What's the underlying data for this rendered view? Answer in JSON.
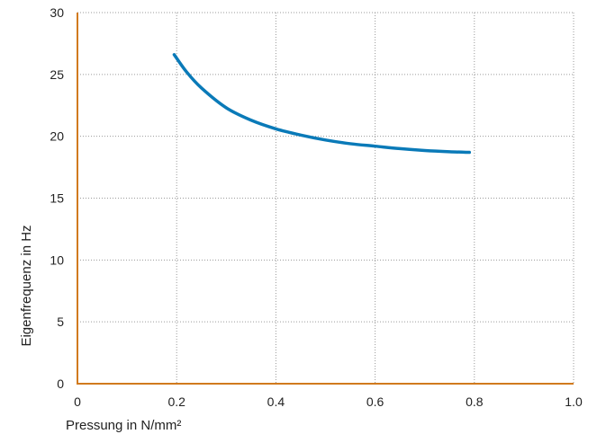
{
  "chart_data": {
    "type": "line",
    "title": "",
    "xlabel": "Pressung in N/mm²",
    "ylabel": "Eigenfrequenz in Hz",
    "xlim": [
      0,
      1.0
    ],
    "ylim": [
      0,
      30
    ],
    "x_ticks": [
      "0",
      "0.2",
      "0.4",
      "0.6",
      "0.8",
      "1.0"
    ],
    "y_ticks": [
      "0",
      "5",
      "10",
      "15",
      "20",
      "25",
      "30"
    ],
    "grid": true,
    "legend": "none",
    "series": [
      {
        "color": "#0a7ab8",
        "x": [
          0.195,
          0.22,
          0.25,
          0.3,
          0.35,
          0.4,
          0.45,
          0.5,
          0.55,
          0.6,
          0.65,
          0.7,
          0.75,
          0.79
        ],
        "y": [
          26.6,
          25.2,
          23.9,
          22.3,
          21.3,
          20.6,
          20.1,
          19.7,
          19.4,
          19.2,
          19.0,
          18.85,
          18.75,
          18.7
        ]
      }
    ]
  },
  "colors": {
    "axis": "#d17a1e",
    "grid": "#9a9a9a",
    "line": "#0a7ab8"
  }
}
